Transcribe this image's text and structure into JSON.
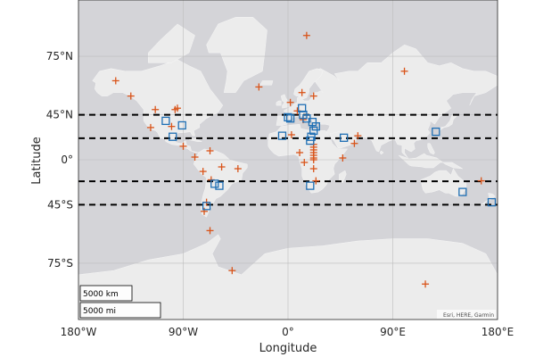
{
  "axes": {
    "xlabel": "Longitude",
    "ylabel": "Latitude",
    "x_ticks": [
      {
        "lon": -180,
        "label": "180°W"
      },
      {
        "lon": -90,
        "label": "90°W"
      },
      {
        "lon": 0,
        "label": "0°"
      },
      {
        "lon": 90,
        "label": "90°E"
      },
      {
        "lon": 180,
        "label": "180°E"
      }
    ],
    "y_ticks": [
      {
        "lat": 75,
        "label": "75°N"
      },
      {
        "lat": 45,
        "label": "45°N"
      },
      {
        "lat": 0,
        "label": "0°"
      },
      {
        "lat": -45,
        "label": "45°S"
      },
      {
        "lat": -75,
        "label": "75°S"
      }
    ],
    "lon_range": [
      -180,
      180
    ],
    "lat_range": [
      -85,
      85
    ],
    "grid": true
  },
  "dashed_latitudes": [
    45,
    23.5,
    -23.5,
    -45
  ],
  "scale_bar": {
    "km_label": "5000 km",
    "mi_label": "5000 mi"
  },
  "attribution": "Esri, HERE, Garmin",
  "colors": {
    "ocean": "#d4d4d8",
    "land": "#ececec",
    "cross": "#d9541a",
    "square": "#1f6fb4",
    "dashed": "#000000",
    "grid": "#bdbdbd"
  },
  "chart_data": {
    "type": "scatter",
    "basemap": "grayland",
    "series": [
      {
        "marker": "plus",
        "points": [
          [
            -148,
            66
          ],
          [
            -135,
            58
          ],
          [
            -114,
            49
          ],
          [
            -118,
            34
          ],
          [
            -100,
            35
          ],
          [
            -97,
            49
          ],
          [
            -95,
            50
          ],
          [
            -90,
            15
          ],
          [
            -80,
            3
          ],
          [
            -67,
            10
          ],
          [
            -73,
            -13
          ],
          [
            -66,
            -22
          ],
          [
            -70,
            -43
          ],
          [
            -72,
            -50
          ],
          [
            -67,
            -62
          ],
          [
            -57,
            -8
          ],
          [
            -43,
            -10
          ],
          [
            -48,
            -77
          ],
          [
            -25,
            63
          ],
          [
            2,
            54
          ],
          [
            8,
            48
          ],
          [
            16,
            80
          ],
          [
            12,
            60
          ],
          [
            22,
            58
          ],
          [
            13,
            41
          ],
          [
            3,
            27
          ],
          [
            10,
            8
          ],
          [
            14,
            -3
          ],
          [
            22,
            -10
          ],
          [
            24,
            -23
          ],
          [
            22,
            17
          ],
          [
            22,
            14
          ],
          [
            22,
            11
          ],
          [
            22,
            8
          ],
          [
            22,
            5
          ],
          [
            22,
            2
          ],
          [
            22,
            0
          ],
          [
            47,
            2
          ],
          [
            57,
            18
          ],
          [
            60,
            26
          ],
          [
            100,
            70
          ],
          [
            166,
            -23
          ],
          [
            118,
            -80
          ]
        ]
      },
      {
        "marker": "square",
        "points": [
          [
            -105,
            40
          ],
          [
            -91,
            36
          ],
          [
            -99,
            25
          ],
          [
            -63,
            -26
          ],
          [
            -59,
            -28
          ],
          [
            -70,
            -46
          ],
          [
            -5,
            26
          ],
          [
            2,
            42
          ],
          [
            0,
            43
          ],
          [
            13,
            45
          ],
          [
            12,
            50
          ],
          [
            16,
            42
          ],
          [
            21,
            39
          ],
          [
            24,
            35
          ],
          [
            22,
            31
          ],
          [
            20,
            25
          ],
          [
            19,
            21
          ],
          [
            19,
            -28
          ],
          [
            48,
            24
          ],
          [
            127,
            30
          ],
          [
            150,
            -34
          ],
          [
            175,
            -43
          ]
        ]
      }
    ]
  }
}
